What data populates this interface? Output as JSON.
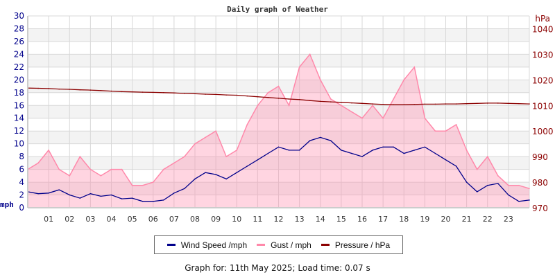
{
  "chart_data": {
    "type": "line",
    "title": "Daily graph of Weather",
    "x_ticks": [
      "01",
      "02",
      "03",
      "04",
      "05",
      "06",
      "07",
      "08",
      "09",
      "10",
      "11",
      "12",
      "13",
      "14",
      "15",
      "16",
      "17",
      "18",
      "19",
      "20",
      "21",
      "22",
      "23"
    ],
    "x_unit": "hour",
    "x": [
      0,
      0.5,
      1,
      1.5,
      2,
      2.5,
      3,
      3.5,
      4,
      4.5,
      5,
      5.5,
      6,
      6.5,
      7,
      7.5,
      8,
      8.5,
      9,
      9.5,
      10,
      10.5,
      11,
      11.5,
      12,
      12.5,
      13,
      13.5,
      14,
      14.5,
      15,
      15.5,
      16,
      16.5,
      17,
      17.5,
      18,
      18.5,
      19,
      19.5,
      20,
      20.5,
      21,
      21.5,
      22,
      22.5,
      23,
      23.5,
      24
    ],
    "left_axis": {
      "label": "mph",
      "ylim": [
        0,
        30
      ],
      "ticks": [
        "0",
        "2",
        "4",
        "6",
        "8",
        "10",
        "12",
        "14",
        "16",
        "18",
        "20",
        "22",
        "24",
        "26",
        "28",
        "30"
      ],
      "color": "#00008b"
    },
    "right_axis": {
      "label": "hPa",
      "ylim": [
        970,
        1045
      ],
      "ticks": [
        "970",
        "980",
        "990",
        "1000",
        "1010",
        "1020",
        "1030",
        "1040"
      ],
      "color": "#8b0000"
    },
    "grid": true,
    "series": [
      {
        "name": "Wind Speed /mph",
        "axis": "left",
        "color": "#00008b",
        "values": [
          2.5,
          2.2,
          2.3,
          2.8,
          2.0,
          1.5,
          2.2,
          1.8,
          2.0,
          1.4,
          1.5,
          1.0,
          1.0,
          1.2,
          2.3,
          3.0,
          4.5,
          5.5,
          5.2,
          4.5,
          5.5,
          6.5,
          7.5,
          8.5,
          9.5,
          9.0,
          9.0,
          10.5,
          11.0,
          10.5,
          9.0,
          8.5,
          8.0,
          9.0,
          9.5,
          9.5,
          8.5,
          9.0,
          9.5,
          8.5,
          7.5,
          6.5,
          4.0,
          2.5,
          3.5,
          3.8,
          2.0,
          1.0,
          1.2
        ]
      },
      {
        "name": "Gust / mph",
        "axis": "left",
        "color": "#ff88aa",
        "values": [
          6,
          7,
          9,
          6,
          5,
          8,
          6,
          5,
          6,
          6,
          3.5,
          3.5,
          4,
          6,
          7,
          8,
          10,
          11,
          12,
          8,
          9,
          13,
          16,
          18,
          19,
          16,
          22,
          24,
          20,
          17,
          16,
          15,
          14,
          16,
          14,
          17,
          20,
          22,
          14,
          12,
          12,
          13,
          9,
          6,
          8,
          5,
          3.5,
          3.5,
          3
        ]
      },
      {
        "name": "Pressure / hPa",
        "axis": "right",
        "color": "#8b0000",
        "values": [
          1016.8,
          1016.7,
          1016.6,
          1016.4,
          1016.3,
          1016.1,
          1016.0,
          1015.8,
          1015.6,
          1015.4,
          1015.3,
          1015.2,
          1015.1,
          1015.0,
          1014.9,
          1014.7,
          1014.6,
          1014.4,
          1014.3,
          1014.1,
          1014.0,
          1013.7,
          1013.4,
          1013.1,
          1012.8,
          1012.5,
          1012.3,
          1011.9,
          1011.6,
          1011.4,
          1011.2,
          1011.0,
          1010.8,
          1010.6,
          1010.4,
          1010.3,
          1010.3,
          1010.4,
          1010.5,
          1010.5,
          1010.6,
          1010.6,
          1010.7,
          1010.8,
          1010.9,
          1010.9,
          1010.8,
          1010.7,
          1010.6
        ]
      }
    ]
  },
  "footer": "Graph for: 11th May 2025; Load time: 0.07 s"
}
